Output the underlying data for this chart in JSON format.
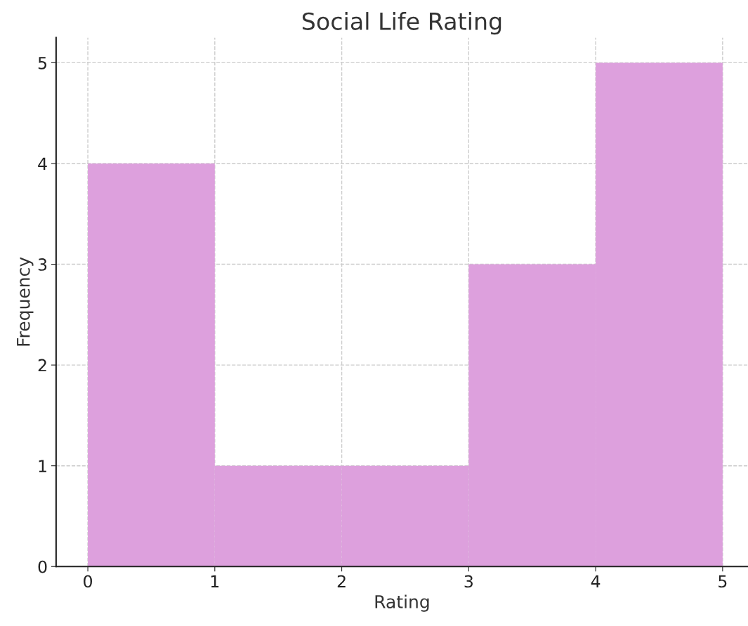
{
  "chart_data": {
    "type": "histogram",
    "title": "Social Life Rating",
    "xlabel": "Rating",
    "ylabel": "Frequency",
    "bins": [
      0,
      1,
      2,
      3,
      4,
      5
    ],
    "values": [
      4,
      1,
      1,
      3,
      5
    ],
    "color": "#dda0dd",
    "xlim": [
      -0.25,
      5.2
    ],
    "xticks": [
      0,
      1,
      2,
      3,
      4,
      5
    ],
    "ylim": [
      0,
      5.25
    ],
    "yticks": [
      0,
      1,
      2,
      3,
      4,
      5
    ],
    "grid": true,
    "line_style": "dashed"
  }
}
